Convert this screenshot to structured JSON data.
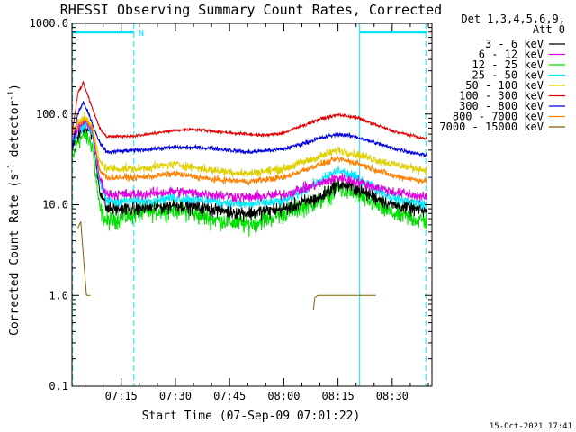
{
  "chart_data": {
    "type": "line",
    "title": "RHESSI Observing Summary Count Rates, Corrected",
    "xlabel": "Start Time (07-Sep-09 07:01:22)",
    "ylabel_parts": [
      "Corrected Count Rate (s",
      "-1",
      " detector",
      "-1",
      ")"
    ],
    "y_scale": "log",
    "ylim": [
      0.1,
      1000
    ],
    "x_unit": "minutes after 07:00",
    "xlim": [
      1.37,
      101
    ],
    "yticks": [
      {
        "v": 1000,
        "label": "1000.0"
      },
      {
        "v": 100,
        "label": "100.0"
      },
      {
        "v": 10,
        "label": "10.0"
      },
      {
        "v": 1,
        "label": "1.0"
      },
      {
        "v": 0.1,
        "label": "0.1"
      }
    ],
    "xticks": [
      {
        "v": 15,
        "label": "07:15"
      },
      {
        "v": 30,
        "label": "07:30"
      },
      {
        "v": 45,
        "label": "07:45"
      },
      {
        "v": 60,
        "label": "08:00"
      },
      {
        "v": 75,
        "label": "08:15"
      },
      {
        "v": 90,
        "label": "08:30"
      }
    ],
    "legend_title": [
      "Det 1,3,4,5,6,9,",
      "Att 0"
    ],
    "legend_position": "right",
    "series": [
      {
        "name": "3 - 6 keV",
        "color": "#000000",
        "noise": 0.07,
        "points": [
          [
            1.4,
            45
          ],
          [
            3,
            58
          ],
          [
            5,
            75
          ],
          [
            7,
            60
          ],
          [
            9,
            15
          ],
          [
            11,
            9
          ],
          [
            20,
            9
          ],
          [
            30,
            10
          ],
          [
            40,
            9
          ],
          [
            50,
            8
          ],
          [
            60,
            9
          ],
          [
            70,
            12
          ],
          [
            75,
            17
          ],
          [
            80,
            15
          ],
          [
            90,
            10
          ],
          [
            99.5,
            8.5
          ]
        ]
      },
      {
        "name": "6 - 12 keV",
        "color": "#e000e0",
        "noise": 0.05,
        "points": [
          [
            1.4,
            58
          ],
          [
            3,
            68
          ],
          [
            5,
            85
          ],
          [
            7,
            68
          ],
          [
            9,
            20
          ],
          [
            11,
            13
          ],
          [
            20,
            13
          ],
          [
            30,
            14
          ],
          [
            40,
            13
          ],
          [
            50,
            12
          ],
          [
            60,
            13
          ],
          [
            70,
            17
          ],
          [
            75,
            20
          ],
          [
            80,
            18
          ],
          [
            90,
            14
          ],
          [
            99.5,
            12
          ]
        ]
      },
      {
        "name": "12 - 25 keV",
        "color": "#00e000",
        "noise": 0.09,
        "points": [
          [
            1.4,
            30
          ],
          [
            3,
            50
          ],
          [
            5,
            60
          ],
          [
            7,
            45
          ],
          [
            9,
            9
          ],
          [
            11,
            6.5
          ],
          [
            20,
            8
          ],
          [
            30,
            9
          ],
          [
            40,
            7
          ],
          [
            50,
            6
          ],
          [
            60,
            8
          ],
          [
            70,
            11
          ],
          [
            75,
            15
          ],
          [
            80,
            13
          ],
          [
            90,
            8
          ],
          [
            99.5,
            6.5
          ]
        ]
      },
      {
        "name": "25 - 50 keV",
        "color": "#00e8ff",
        "noise": 0.05,
        "points": [
          [
            1.4,
            48
          ],
          [
            3,
            65
          ],
          [
            5,
            80
          ],
          [
            7,
            62
          ],
          [
            9,
            18
          ],
          [
            11,
            11
          ],
          [
            20,
            11
          ],
          [
            30,
            12
          ],
          [
            40,
            11
          ],
          [
            50,
            10
          ],
          [
            60,
            11
          ],
          [
            70,
            18
          ],
          [
            75,
            24
          ],
          [
            80,
            20
          ],
          [
            90,
            12
          ],
          [
            99.5,
            10
          ]
        ]
      },
      {
        "name": "50 - 100 keV",
        "color": "#e0d000",
        "noise": 0.04,
        "points": [
          [
            1.4,
            65
          ],
          [
            3,
            80
          ],
          [
            5,
            95
          ],
          [
            7,
            75
          ],
          [
            9,
            30
          ],
          [
            11,
            25
          ],
          [
            20,
            25
          ],
          [
            30,
            28
          ],
          [
            40,
            24
          ],
          [
            50,
            22
          ],
          [
            60,
            25
          ],
          [
            70,
            34
          ],
          [
            75,
            40
          ],
          [
            80,
            36
          ],
          [
            90,
            28
          ],
          [
            99.5,
            24
          ]
        ]
      },
      {
        "name": "100 - 300 keV",
        "color": "#e00000",
        "noise": 0.015,
        "points": [
          [
            1.4,
            60
          ],
          [
            3,
            170
          ],
          [
            4.5,
            220
          ],
          [
            6,
            150
          ],
          [
            9,
            70
          ],
          [
            11,
            56
          ],
          [
            20,
            58
          ],
          [
            30,
            66
          ],
          [
            35,
            68
          ],
          [
            45,
            62
          ],
          [
            55,
            58
          ],
          [
            60,
            62
          ],
          [
            70,
            88
          ],
          [
            75,
            98
          ],
          [
            80,
            92
          ],
          [
            90,
            65
          ],
          [
            99.5,
            53
          ]
        ]
      },
      {
        "name": "300 - 800 keV",
        "color": "#0000e0",
        "noise": 0.02,
        "points": [
          [
            1.4,
            40
          ],
          [
            3,
            100
          ],
          [
            4.5,
            135
          ],
          [
            6,
            100
          ],
          [
            9,
            48
          ],
          [
            11,
            38
          ],
          [
            20,
            40
          ],
          [
            30,
            43
          ],
          [
            40,
            42
          ],
          [
            50,
            38
          ],
          [
            60,
            41
          ],
          [
            70,
            54
          ],
          [
            75,
            60
          ],
          [
            80,
            56
          ],
          [
            90,
            42
          ],
          [
            99.5,
            35
          ]
        ]
      },
      {
        "name": "800 - 7000 keV",
        "color": "#ff8000",
        "noise": 0.03,
        "points": [
          [
            1.4,
            60
          ],
          [
            3,
            75
          ],
          [
            5,
            90
          ],
          [
            7,
            70
          ],
          [
            9,
            24
          ],
          [
            11,
            20
          ],
          [
            20,
            20
          ],
          [
            30,
            22
          ],
          [
            40,
            19
          ],
          [
            50,
            18
          ],
          [
            60,
            20
          ],
          [
            70,
            28
          ],
          [
            75,
            32
          ],
          [
            80,
            29
          ],
          [
            90,
            21
          ],
          [
            99.5,
            18
          ]
        ]
      },
      {
        "name": "7000 - 15000 keV",
        "color": "#806000",
        "noise": 0.0,
        "segments": [
          [
            [
              3,
              5.5
            ],
            [
              3.8,
              6.5
            ],
            [
              4.5,
              2.8
            ],
            [
              5.3,
              1.1
            ],
            [
              5.4,
              1.0
            ],
            [
              6.5,
              1.0
            ]
          ],
          [
            [
              68.2,
              0.7
            ],
            [
              68.6,
              0.95
            ],
            [
              69.5,
              1.0
            ],
            [
              85.5,
              1.0
            ]
          ]
        ]
      }
    ],
    "markers": {
      "dashed_vlines": [
        1.5,
        18.5,
        99.3
      ],
      "solid_vlines": [
        81
      ],
      "attenuator_bars": [
        [
          1.37,
          18.5
        ],
        [
          81,
          99.5
        ]
      ],
      "bar_level": 800,
      "bar_label": "N",
      "bar_label_at": 19.8,
      "color": "#00e0ff"
    }
  },
  "footer_timestamp": "15-Oct-2021 17:41"
}
